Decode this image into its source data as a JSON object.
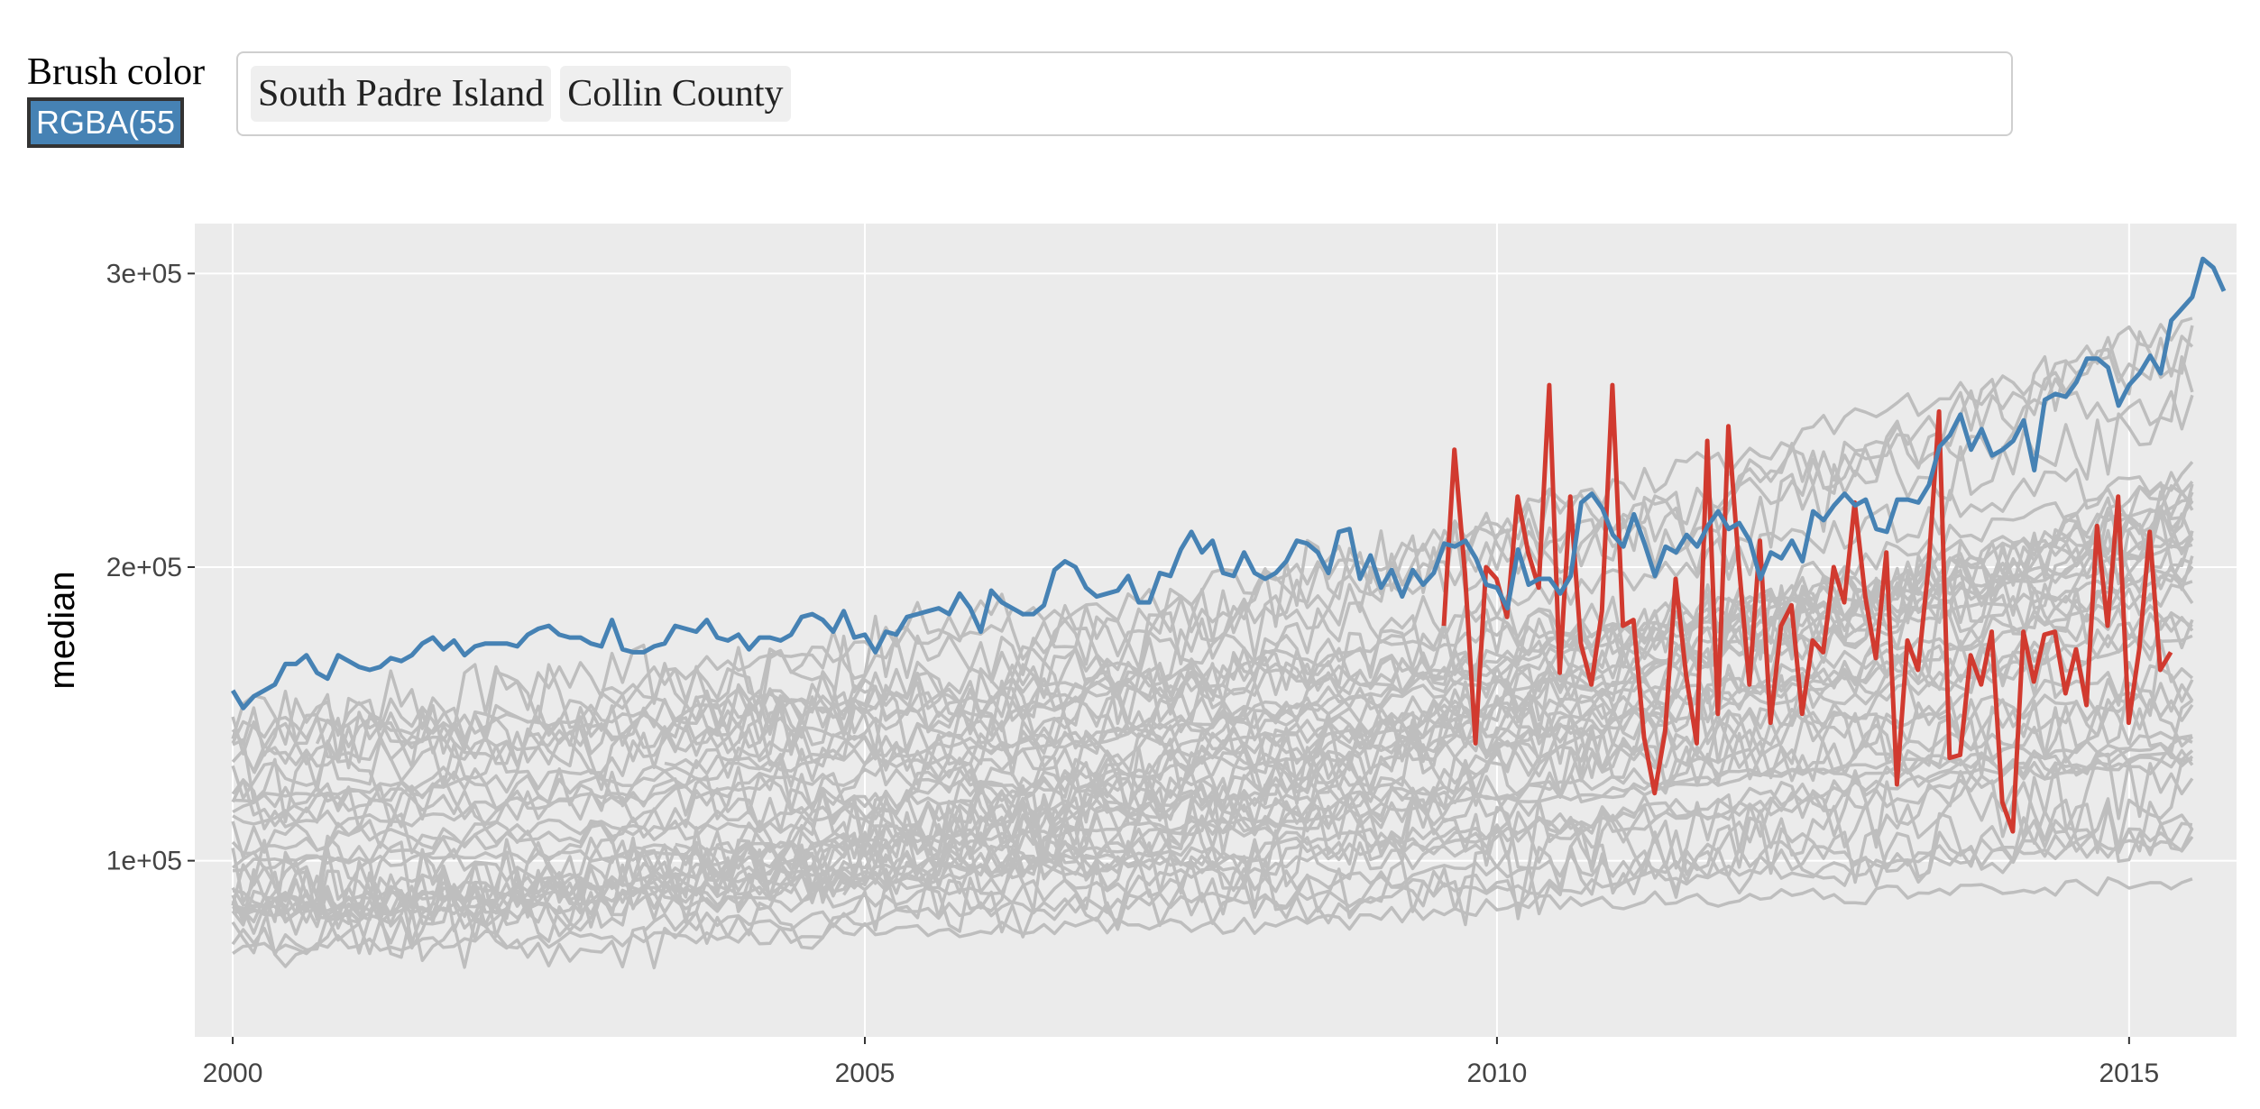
{
  "controls": {
    "brush_label": "Brush color",
    "brush_value": "RGBA(55",
    "selected": [
      "South Padre Island",
      "Collin County"
    ]
  },
  "colors": {
    "panel_bg": "#EBEBEB",
    "grid": "#FFFFFF",
    "background_lines": "#BEBEBE",
    "south_padre_island": "#D13A2F",
    "collin_county": "#4682B4"
  },
  "chart_data": {
    "type": "line",
    "xlabel": "",
    "ylabel": "median",
    "xlim": [
      1999.7,
      2015.85
    ],
    "ylim": [
      40000,
      317000
    ],
    "x_ticks": [
      2000,
      2005,
      2010,
      2015
    ],
    "x_tick_labels": [
      "2000",
      "2005",
      "2010",
      "2015"
    ],
    "y_ticks": [
      100000,
      200000,
      300000
    ],
    "y_tick_labels": [
      "1e+05",
      "2e+05",
      "3e+05"
    ],
    "grid": true,
    "legend": "none",
    "series": [
      {
        "name": "Collin County",
        "x_start": 2000.0,
        "x_step": 0.0833333,
        "values": [
          158000,
          152000,
          156000,
          158000,
          160000,
          167000,
          167000,
          170000,
          164000,
          162000,
          170000,
          168000,
          166000,
          165000,
          166000,
          169000,
          168000,
          170000,
          174000,
          176000,
          172000,
          175000,
          170000,
          173000,
          174000,
          174000,
          174000,
          173000,
          177000,
          179000,
          180000,
          177000,
          176000,
          176000,
          174000,
          173000,
          182000,
          172000,
          171000,
          171000,
          173000,
          174000,
          180000,
          179000,
          178000,
          182000,
          176000,
          175000,
          177000,
          172000,
          176000,
          176000,
          175000,
          177000,
          183000,
          184000,
          182000,
          178000,
          185000,
          176000,
          177000,
          171000,
          178000,
          177000,
          183000,
          184000,
          185000,
          186000,
          184000,
          191000,
          186000,
          178000,
          192000,
          188000,
          186000,
          184000,
          184000,
          187000,
          199000,
          202000,
          200000,
          193000,
          190000,
          191000,
          192000,
          197000,
          188000,
          188000,
          198000,
          197000,
          206000,
          212000,
          205000,
          209000,
          198000,
          197000,
          205000,
          198000,
          196000,
          198000,
          202000,
          209000,
          208000,
          205000,
          198000,
          212000,
          213000,
          196000,
          204000,
          193000,
          199000,
          190000,
          199000,
          194000,
          198000,
          208000,
          207000,
          209000,
          203000,
          194000,
          193000,
          186000,
          206000,
          194000,
          196000,
          196000,
          191000,
          197000,
          222000,
          225000,
          220000,
          211000,
          207000,
          218000,
          208000,
          197000,
          207000,
          205000,
          211000,
          207000,
          214000,
          219000,
          213000,
          215000,
          209000,
          196000,
          205000,
          203000,
          209000,
          202000,
          219000,
          216000,
          221000,
          225000,
          221000,
          223000,
          213000,
          212000,
          223000,
          223000,
          222000,
          228000,
          241000,
          245000,
          252000,
          240000,
          247000,
          238000,
          240000,
          243000,
          250000,
          233000,
          257000,
          259000,
          258000,
          263000,
          271000,
          271000,
          268000,
          255000,
          262000,
          266000,
          272000,
          266000,
          284000,
          288000,
          292000,
          305000,
          302000,
          294000
        ]
      },
      {
        "name": "South Padre Island",
        "x_start": 2009.58,
        "x_step": 0.0833333,
        "values": [
          180000,
          240000,
          198000,
          140000,
          200000,
          196000,
          183000,
          224000,
          205000,
          193000,
          262000,
          164000,
          224000,
          174000,
          160000,
          185000,
          262000,
          180000,
          182000,
          142000,
          123000,
          144000,
          196000,
          163000,
          140000,
          243000,
          150000,
          248000,
          201000,
          160000,
          209000,
          147000,
          180000,
          187000,
          150000,
          175000,
          171000,
          200000,
          188000,
          222000,
          190000,
          169000,
          205000,
          126000,
          175000,
          165000,
          200000,
          253000,
          135000,
          136000,
          170000,
          160000,
          178000,
          120000,
          110000,
          178000,
          161000,
          177000,
          178000,
          157000,
          172000,
          153000,
          214000,
          180000,
          224000,
          147000,
          172000,
          212000,
          165000,
          171000
        ]
      }
    ],
    "background_series": "approx. 45 other Texas cities/counties drawn in light gray, monthly medians 2000–2015 mostly ranging 60000–280000"
  }
}
